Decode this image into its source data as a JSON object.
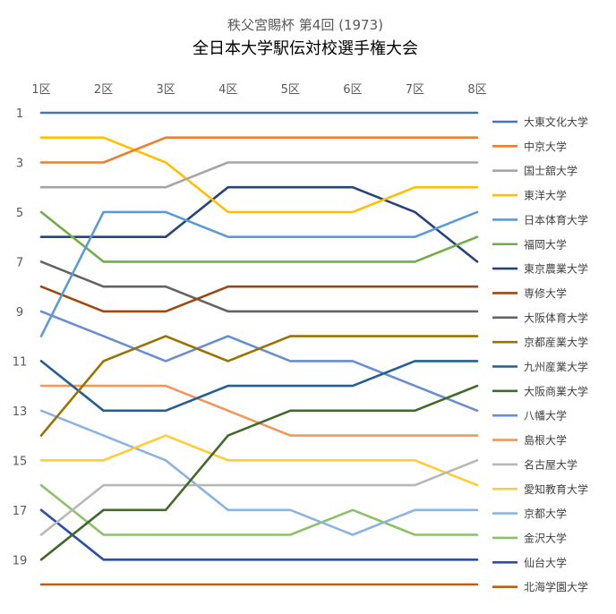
{
  "chart_data": {
    "type": "line",
    "title": "秩父宮賜杯 第4回 (1973)",
    "subtitle": "全日本大学駅伝対校選手権大会",
    "categories": [
      "1区",
      "2区",
      "3区",
      "4区",
      "5区",
      "6区",
      "7区",
      "8区"
    ],
    "y_ticks": [
      "1",
      "3",
      "5",
      "7",
      "9",
      "11",
      "13",
      "15",
      "17",
      "19"
    ],
    "ylim": [
      1,
      20
    ],
    "y_reversed": true,
    "grid": false,
    "legend_position": "right",
    "series": [
      {
        "name": "大東文化大学",
        "color": "#4472C4",
        "values": [
          1,
          1,
          1,
          1,
          1,
          1,
          1,
          1
        ]
      },
      {
        "name": "中京大学",
        "color": "#ED7D31",
        "values": [
          3,
          3,
          2,
          2,
          2,
          2,
          2,
          2
        ]
      },
      {
        "name": "国士舘大学",
        "color": "#A5A5A5",
        "values": [
          4,
          4,
          4,
          3,
          3,
          3,
          3,
          3
        ]
      },
      {
        "name": "東洋大学",
        "color": "#FFC000",
        "values": [
          2,
          2,
          3,
          5,
          5,
          5,
          4,
          4
        ]
      },
      {
        "name": "日本体育大学",
        "color": "#5B9BD5",
        "values": [
          10,
          5,
          5,
          6,
          6,
          6,
          6,
          5
        ]
      },
      {
        "name": "福岡大学",
        "color": "#70AD47",
        "values": [
          5,
          7,
          7,
          7,
          7,
          7,
          7,
          6
        ]
      },
      {
        "name": "東京農業大学",
        "color": "#264478",
        "values": [
          6,
          6,
          6,
          4,
          4,
          4,
          5,
          7
        ]
      },
      {
        "name": "専修大学",
        "color": "#9E480E",
        "values": [
          8,
          9,
          9,
          8,
          8,
          8,
          8,
          8
        ]
      },
      {
        "name": "大阪体育大学",
        "color": "#636363",
        "values": [
          7,
          8,
          8,
          9,
          9,
          9,
          9,
          9
        ]
      },
      {
        "name": "京都産業大学",
        "color": "#997300",
        "values": [
          14,
          11,
          10,
          11,
          10,
          10,
          10,
          10
        ]
      },
      {
        "name": "九州産業大学",
        "color": "#255E91",
        "values": [
          11,
          13,
          13,
          12,
          12,
          12,
          11,
          11
        ]
      },
      {
        "name": "大阪商業大学",
        "color": "#43682B",
        "values": [
          19,
          17,
          17,
          14,
          13,
          13,
          13,
          12
        ]
      },
      {
        "name": "八幡大学",
        "color": "#698ED0",
        "values": [
          9,
          10,
          11,
          10,
          11,
          11,
          12,
          13
        ]
      },
      {
        "name": "島根大学",
        "color": "#F1975A",
        "values": [
          12,
          12,
          12,
          13,
          14,
          14,
          14,
          14
        ]
      },
      {
        "name": "名古屋大学",
        "color": "#B7B7B7",
        "values": [
          18,
          16,
          16,
          16,
          16,
          16,
          16,
          15
        ]
      },
      {
        "name": "愛知教育大学",
        "color": "#FFCD33",
        "values": [
          15,
          15,
          14,
          15,
          15,
          15,
          15,
          16
        ]
      },
      {
        "name": "京都大学",
        "color": "#8CB4E1",
        "values": [
          13,
          14,
          15,
          17,
          17,
          18,
          17,
          17
        ]
      },
      {
        "name": "金沢大学",
        "color": "#8CC168",
        "values": [
          16,
          18,
          18,
          18,
          18,
          17,
          18,
          18
        ]
      },
      {
        "name": "仙台大学",
        "color": "#2E4FA0",
        "values": [
          17,
          19,
          19,
          19,
          19,
          19,
          19,
          19
        ]
      },
      {
        "name": "北海学園大学",
        "color": "#C55A11",
        "values": [
          20,
          20,
          20,
          20,
          20,
          20,
          20,
          20
        ]
      }
    ]
  }
}
